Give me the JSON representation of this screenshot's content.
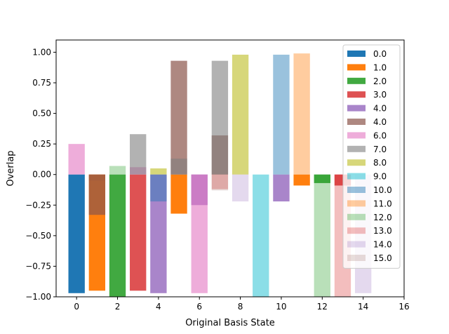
{
  "chart_data": {
    "type": "bar",
    "title": "",
    "xlabel": "Original Basis State",
    "ylabel": "Overlap",
    "xlim": [
      -1,
      16
    ],
    "ylim": [
      -1.0,
      1.1
    ],
    "xticks": [
      0,
      2,
      4,
      6,
      8,
      10,
      12,
      14,
      16
    ],
    "yticks": [
      -1.0,
      -0.75,
      -0.5,
      -0.25,
      0.0,
      0.25,
      0.5,
      0.75,
      1.0
    ],
    "ytick_labels": [
      "−1.00",
      "−0.75",
      "−0.50",
      "−0.25",
      "0.00",
      "0.25",
      "0.50",
      "0.75",
      "1.00"
    ],
    "bar_width": 0.8,
    "grid": false,
    "legend_position": "upper right",
    "series": [
      {
        "name": "0.0",
        "color": "#1f77b4",
        "alpha": 1.0,
        "values": [
          -0.97,
          0,
          0,
          0,
          0.0,
          0,
          0,
          0,
          0,
          0,
          0,
          0,
          0,
          0,
          0,
          0
        ]
      },
      {
        "name": "1.0",
        "color": "#ff7f0e",
        "alpha": 1.0,
        "values": [
          0,
          -0.95,
          0,
          0,
          0,
          -0.32,
          0,
          0,
          0,
          0,
          0,
          -0.09,
          0,
          0,
          0,
          0
        ]
      },
      {
        "name": "2.0",
        "color": "#2ca02c",
        "alpha": 0.9,
        "values": [
          0,
          0,
          -1.0,
          0,
          0,
          0,
          0,
          0,
          0,
          0,
          0,
          0,
          -0.07,
          0,
          0,
          0
        ]
      },
      {
        "name": "3.0",
        "color": "#d62728",
        "alpha": 0.8,
        "values": [
          0,
          0,
          0,
          -0.95,
          0,
          0,
          0,
          0,
          0,
          0,
          0,
          0,
          0,
          -0.09,
          0,
          0
        ]
      },
      {
        "name": "4.0",
        "color": "#9467bd",
        "alpha": 0.8,
        "values": [
          0,
          0,
          0,
          0,
          -0.97,
          0,
          -0.25,
          0,
          0,
          0,
          -0.22,
          0,
          0,
          0,
          0,
          0
        ]
      },
      {
        "name": "4.0",
        "color": "#8c564b",
        "alpha": 0.7,
        "values": [
          0,
          -0.33,
          0,
          0,
          0,
          0.93,
          0,
          0.32,
          0,
          0,
          0,
          0,
          0,
          0,
          0,
          0
        ]
      },
      {
        "name": "6.0",
        "color": "#e377c2",
        "alpha": 0.6,
        "values": [
          0.25,
          0,
          0,
          0.06,
          0,
          0,
          -0.97,
          0,
          0,
          0,
          0,
          0,
          0,
          0,
          0,
          0
        ]
      },
      {
        "name": "7.0",
        "color": "#7f7f7f",
        "alpha": 0.6,
        "values": [
          0,
          0,
          0,
          0.33,
          0,
          0.13,
          0,
          0.93,
          0,
          0,
          0,
          0,
          0,
          0,
          0,
          0
        ]
      },
      {
        "name": "8.0",
        "color": "#bcbd22",
        "alpha": 0.6,
        "values": [
          0,
          0,
          0,
          0,
          0.05,
          0,
          0,
          0,
          0.98,
          0,
          0,
          0,
          0,
          0,
          0,
          0
        ]
      },
      {
        "name": "9.0",
        "color": "#17becf",
        "alpha": 0.5,
        "values": [
          0,
          0,
          0,
          0,
          0,
          0,
          0,
          0,
          0,
          -1.0,
          0,
          0,
          0,
          0,
          0,
          0
        ]
      },
      {
        "name": "10.0",
        "color": "#1f77b4",
        "alpha": 0.45,
        "values": [
          0,
          0,
          0,
          0,
          -0.22,
          0,
          0,
          0,
          0,
          0,
          0.98,
          0,
          0,
          0,
          0,
          0
        ]
      },
      {
        "name": "11.0",
        "color": "#ff7f0e",
        "alpha": 0.4,
        "values": [
          0,
          0,
          0,
          0,
          0,
          0,
          0,
          0,
          0,
          0,
          0,
          0.99,
          0,
          0,
          0,
          0
        ]
      },
      {
        "name": "12.0",
        "color": "#2ca02c",
        "alpha": 0.33,
        "values": [
          0,
          0,
          0.07,
          0,
          0,
          0,
          0,
          0,
          0,
          0,
          0,
          0,
          -1.0,
          0,
          0,
          0
        ]
      },
      {
        "name": "13.0",
        "color": "#d62728",
        "alpha": 0.3,
        "values": [
          0,
          0,
          0,
          0,
          0,
          0,
          0,
          -0.12,
          0,
          0,
          0,
          0,
          0,
          -1.0,
          0,
          0
        ]
      },
      {
        "name": "14.0",
        "color": "#9467bd",
        "alpha": 0.25,
        "values": [
          0,
          0,
          0,
          0,
          0,
          0,
          0,
          0,
          -0.22,
          0,
          0,
          0,
          0,
          0,
          -0.97,
          0
        ]
      },
      {
        "name": "15.0",
        "color": "#8c564b",
        "alpha": 0.2,
        "values": [
          0,
          -0.05,
          0,
          0,
          0,
          0,
          0,
          -0.13,
          0,
          0,
          0,
          0,
          0,
          0,
          0,
          0
        ]
      }
    ]
  }
}
